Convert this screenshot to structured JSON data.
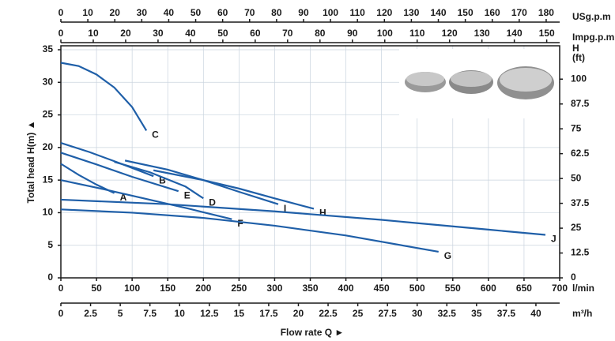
{
  "chart_data": {
    "type": "line",
    "x_label": "Flow rate Q  ►",
    "y_label": "Total  head H(m)  ▲",
    "x_unit": "l/min",
    "y2_label": "H",
    "y2_unit": "(ft)",
    "xlim": [
      0,
      700
    ],
    "xticks": [
      0,
      50,
      100,
      150,
      200,
      250,
      300,
      350,
      400,
      450,
      500,
      550,
      600,
      650,
      700
    ],
    "ylim": [
      0,
      35
    ],
    "yticks": [
      0,
      5,
      10,
      15,
      20,
      25,
      30,
      35
    ],
    "y2lim": [
      0,
      114.8
    ],
    "y2ticks": [
      0,
      12.5,
      25,
      37.5,
      50,
      62.5,
      75,
      87.5,
      100
    ],
    "grid": true,
    "secondary_x_axes": [
      {
        "label": "USg.p.m",
        "position": "top",
        "xlim": [
          0,
          185
        ],
        "xticks": [
          0,
          10,
          20,
          30,
          40,
          50,
          60,
          70,
          80,
          90,
          100,
          110,
          120,
          130,
          140,
          150,
          160,
          170,
          180
        ]
      },
      {
        "label": "Impg.p.m",
        "position": "top",
        "xlim": [
          0,
          154
        ],
        "xticks": [
          0,
          10,
          20,
          30,
          40,
          50,
          60,
          70,
          80,
          90,
          100,
          110,
          120,
          130,
          140,
          150
        ]
      },
      {
        "label": "m³/h",
        "position": "bottom",
        "xlim": [
          0,
          42
        ],
        "xticks": [
          0,
          2.5,
          5,
          7.5,
          10,
          12.5,
          15,
          17.5,
          20,
          22.5,
          25,
          27.5,
          30,
          32.5,
          35,
          37.5,
          40
        ]
      }
    ],
    "series": [
      {
        "name": "C",
        "color": "#1f5fa8",
        "x": [
          0,
          25,
          50,
          75,
          100,
          120
        ],
        "values": [
          33,
          32.5,
          31.2,
          29.2,
          26.2,
          22.6
        ]
      },
      {
        "name": "A",
        "color": "#1f5fa8",
        "x": [
          0,
          25,
          50,
          75
        ],
        "values": [
          17.5,
          15.8,
          14.3,
          13.0
        ]
      },
      {
        "name": "B",
        "color": "#1f5fa8",
        "x": [
          0,
          40,
          80,
          130
        ],
        "values": [
          20.7,
          19.3,
          17.7,
          15.6
        ]
      },
      {
        "name": "E",
        "color": "#1f5fa8",
        "x": [
          0,
          50,
          100,
          165
        ],
        "values": [
          19.2,
          17.4,
          15.5,
          13.3
        ]
      },
      {
        "name": "D",
        "color": "#1f5fa8",
        "x": [
          75,
          125,
          175,
          200
        ],
        "values": [
          17.8,
          16.2,
          14.0,
          12.2
        ]
      },
      {
        "name": "F",
        "color": "#1f5fa8",
        "x": [
          0,
          60,
          120,
          180,
          240
        ],
        "values": [
          15.0,
          13.6,
          12.1,
          10.6,
          9.0
        ]
      },
      {
        "name": "I",
        "color": "#1f5fa8",
        "x": [
          90,
          150,
          200,
          250,
          305
        ],
        "values": [
          18.0,
          16.6,
          15.0,
          13.2,
          11.3
        ]
      },
      {
        "name": "H",
        "color": "#1f5fa8",
        "x": [
          130,
          200,
          250,
          300,
          355
        ],
        "values": [
          16.5,
          15.0,
          13.7,
          12.2,
          10.6
        ]
      },
      {
        "name": "J",
        "color": "#1f5fa8",
        "x": [
          0,
          150,
          300,
          450,
          600,
          680
        ],
        "values": [
          12.0,
          11.3,
          10.2,
          8.9,
          7.4,
          6.6
        ]
      },
      {
        "name": "G",
        "color": "#1f5fa8",
        "x": [
          0,
          100,
          200,
          300,
          400,
          530
        ],
        "values": [
          10.5,
          10.0,
          9.2,
          8.0,
          6.5,
          4.0
        ]
      }
    ]
  }
}
